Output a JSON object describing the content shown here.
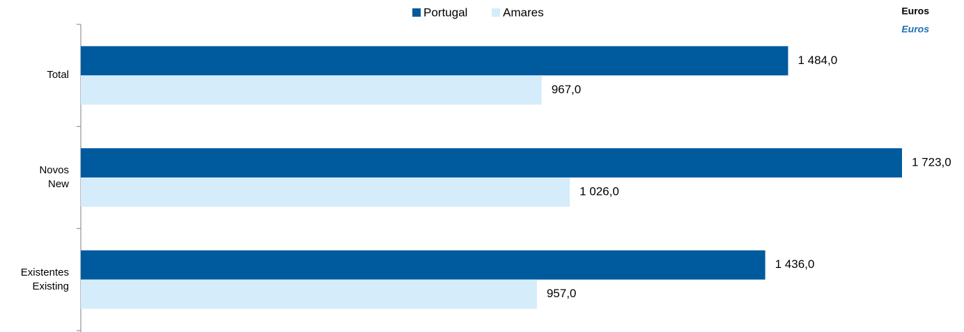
{
  "chart_data": {
    "type": "bar",
    "orientation": "horizontal",
    "categories": [
      "Total",
      "Novos\nNew",
      "Existentes\nExisting"
    ],
    "series": [
      {
        "name": "Portugal",
        "color": "#005a9e",
        "values": [
          1484.0,
          1723.0,
          1436.0
        ],
        "value_labels": [
          "1 484,0",
          "1 723,0",
          "1 436,0"
        ]
      },
      {
        "name": "Amares",
        "color": "#d5ecfb",
        "values": [
          967.0,
          1026.0,
          957.0
        ],
        "value_labels": [
          "967,0",
          "1 026,0",
          "957,0"
        ]
      }
    ],
    "units": [
      "Euros",
      "Euros"
    ],
    "legend": "top"
  }
}
